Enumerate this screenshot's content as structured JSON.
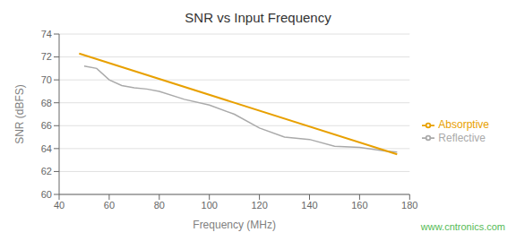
{
  "chart_data": {
    "type": "line",
    "title": "SNR vs Input Frequency",
    "x_label": "Frequency (MHz)",
    "y_label": "SNR (dBFS)",
    "xlim": [
      40,
      180
    ],
    "ylim": [
      60,
      74
    ],
    "xticks": [
      40,
      60,
      80,
      100,
      120,
      140,
      160,
      180
    ],
    "yticks": [
      60,
      62,
      64,
      66,
      68,
      70,
      72,
      74
    ],
    "series": [
      {
        "name": "Reflective",
        "color": "#aaaaaa",
        "x": [
          50,
          55,
          60,
          65,
          70,
          75,
          80,
          90,
          100,
          110,
          120,
          130,
          140,
          150,
          160,
          170,
          175
        ],
        "values": [
          71.2,
          71.0,
          70.0,
          69.5,
          69.3,
          69.2,
          69.0,
          68.3,
          67.8,
          67.0,
          65.8,
          65.0,
          64.8,
          64.2,
          64.1,
          63.8,
          63.7
        ]
      },
      {
        "name": "Absorptive",
        "color": "#e8a000",
        "x": [
          48,
          175
        ],
        "values": [
          72.3,
          63.5
        ]
      }
    ],
    "grid": "y",
    "legend": "right",
    "annotations": [
      {
        "text": "www.cntronics.com",
        "color": "#55bb55"
      }
    ]
  }
}
